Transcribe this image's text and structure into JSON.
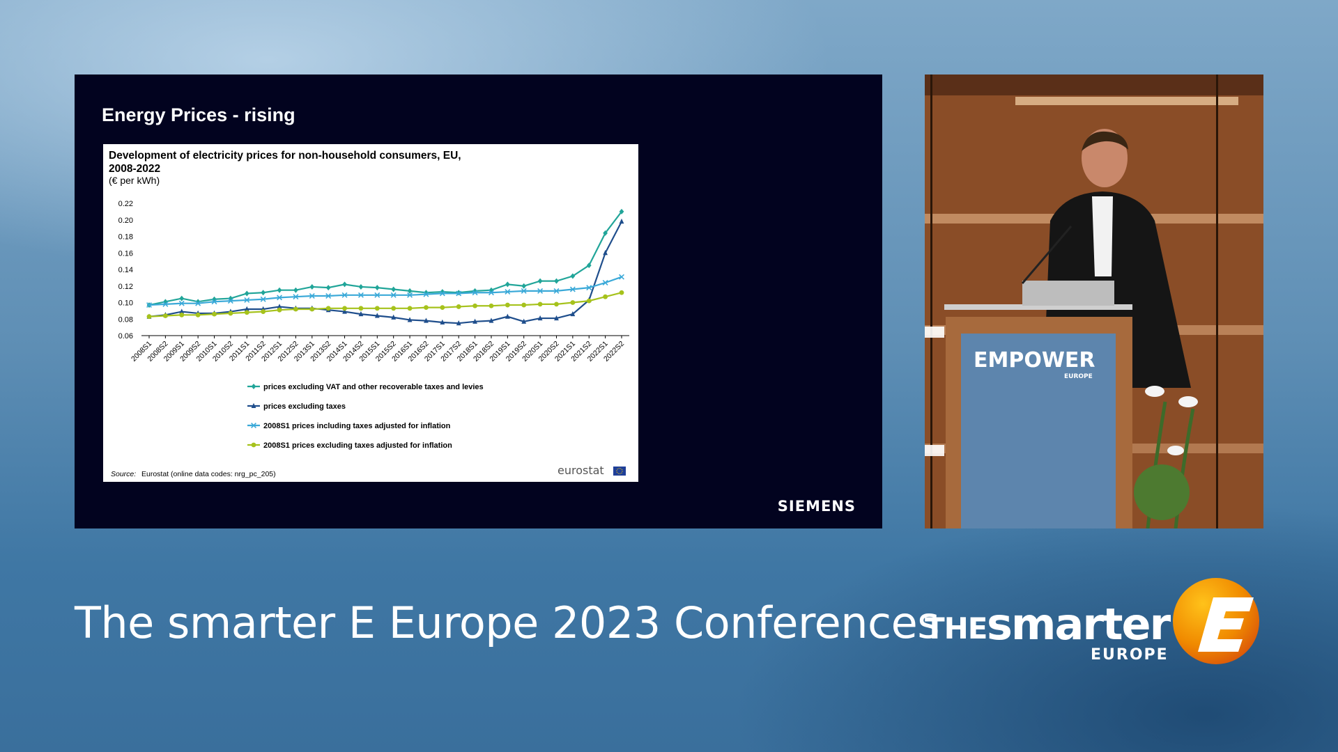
{
  "slide": {
    "title": "Energy Prices - rising",
    "brand": "SIEMENS"
  },
  "conference": {
    "title": "The smarter E Europe 2023 Conferences",
    "logo_the": "THE",
    "logo_smarter": "smarter",
    "logo_europe": "EUROPE"
  },
  "video": {
    "podium_brand": "EMPOWER",
    "podium_sub": "EUROPE"
  },
  "colors": {
    "series1": "#21a599",
    "series2": "#1f4e8c",
    "series3": "#3aa9d8",
    "series4": "#a6c21c",
    "slide_bg": "#02031f",
    "logo_orange": "#f39200"
  },
  "chart_data": {
    "type": "line",
    "title": "Development of electricity prices for non-household consumers, EU, 2008-2022",
    "subtitle": "(€ per kWh)",
    "source_label": "Source:",
    "source_text": "Eurostat (online data codes: nrg_pc_205)",
    "source_brand": "eurostat",
    "ylim": [
      0.06,
      0.22
    ],
    "yticks": [
      "0.06",
      "0.08",
      "0.10",
      "0.12",
      "0.14",
      "0.16",
      "0.18",
      "0.20",
      "0.22"
    ],
    "grid": false,
    "legend_position": "bottom",
    "categories": [
      "2008S1",
      "2008S2",
      "2009S1",
      "2009S2",
      "2010S1",
      "2010S2",
      "2011S1",
      "2011S2",
      "2012S1",
      "2012S2",
      "2013S1",
      "2013S2",
      "2014S1",
      "2014S2",
      "2015S1",
      "2015S2",
      "2016S1",
      "2016S2",
      "2017S1",
      "2017S2",
      "2018S1",
      "2018S2",
      "2019S1",
      "2019S2",
      "2020S1",
      "2020S2",
      "2021S1",
      "2021S2",
      "2022S1",
      "2022S2"
    ],
    "series": [
      {
        "name": "prices excluding VAT and other recoverable taxes and levies",
        "marker": "diamond",
        "color": "#21a599",
        "values": [
          0.097,
          0.101,
          0.105,
          0.101,
          0.104,
          0.105,
          0.111,
          0.112,
          0.115,
          0.115,
          0.119,
          0.118,
          0.122,
          0.119,
          0.118,
          0.116,
          0.114,
          0.112,
          0.113,
          0.112,
          0.114,
          0.115,
          0.122,
          0.12,
          0.126,
          0.126,
          0.132,
          0.145,
          0.184,
          0.21
        ]
      },
      {
        "name": "prices excluding taxes",
        "marker": "triangle",
        "color": "#1f4e8c",
        "values": [
          0.083,
          0.085,
          0.089,
          0.087,
          0.087,
          0.089,
          0.092,
          0.092,
          0.095,
          0.093,
          0.093,
          0.091,
          0.089,
          0.086,
          0.084,
          0.082,
          0.079,
          0.078,
          0.076,
          0.075,
          0.077,
          0.078,
          0.083,
          0.077,
          0.081,
          0.081,
          0.086,
          0.103,
          0.16,
          0.198
        ]
      },
      {
        "name": "2008S1 prices including taxes adjusted for inflation",
        "marker": "cross",
        "color": "#3aa9d8",
        "values": [
          0.097,
          0.098,
          0.099,
          0.099,
          0.101,
          0.102,
          0.103,
          0.104,
          0.106,
          0.107,
          0.108,
          0.108,
          0.109,
          0.109,
          0.109,
          0.109,
          0.109,
          0.11,
          0.111,
          0.111,
          0.112,
          0.112,
          0.113,
          0.114,
          0.114,
          0.114,
          0.116,
          0.118,
          0.124,
          0.131
        ]
      },
      {
        "name": "2008S1 prices excluding taxes adjusted for inflation",
        "marker": "circle",
        "color": "#a6c21c",
        "values": [
          0.083,
          0.084,
          0.085,
          0.085,
          0.086,
          0.087,
          0.088,
          0.089,
          0.091,
          0.092,
          0.092,
          0.093,
          0.093,
          0.093,
          0.093,
          0.093,
          0.093,
          0.094,
          0.094,
          0.095,
          0.096,
          0.096,
          0.097,
          0.097,
          0.098,
          0.098,
          0.1,
          0.102,
          0.107,
          0.112
        ]
      }
    ]
  }
}
